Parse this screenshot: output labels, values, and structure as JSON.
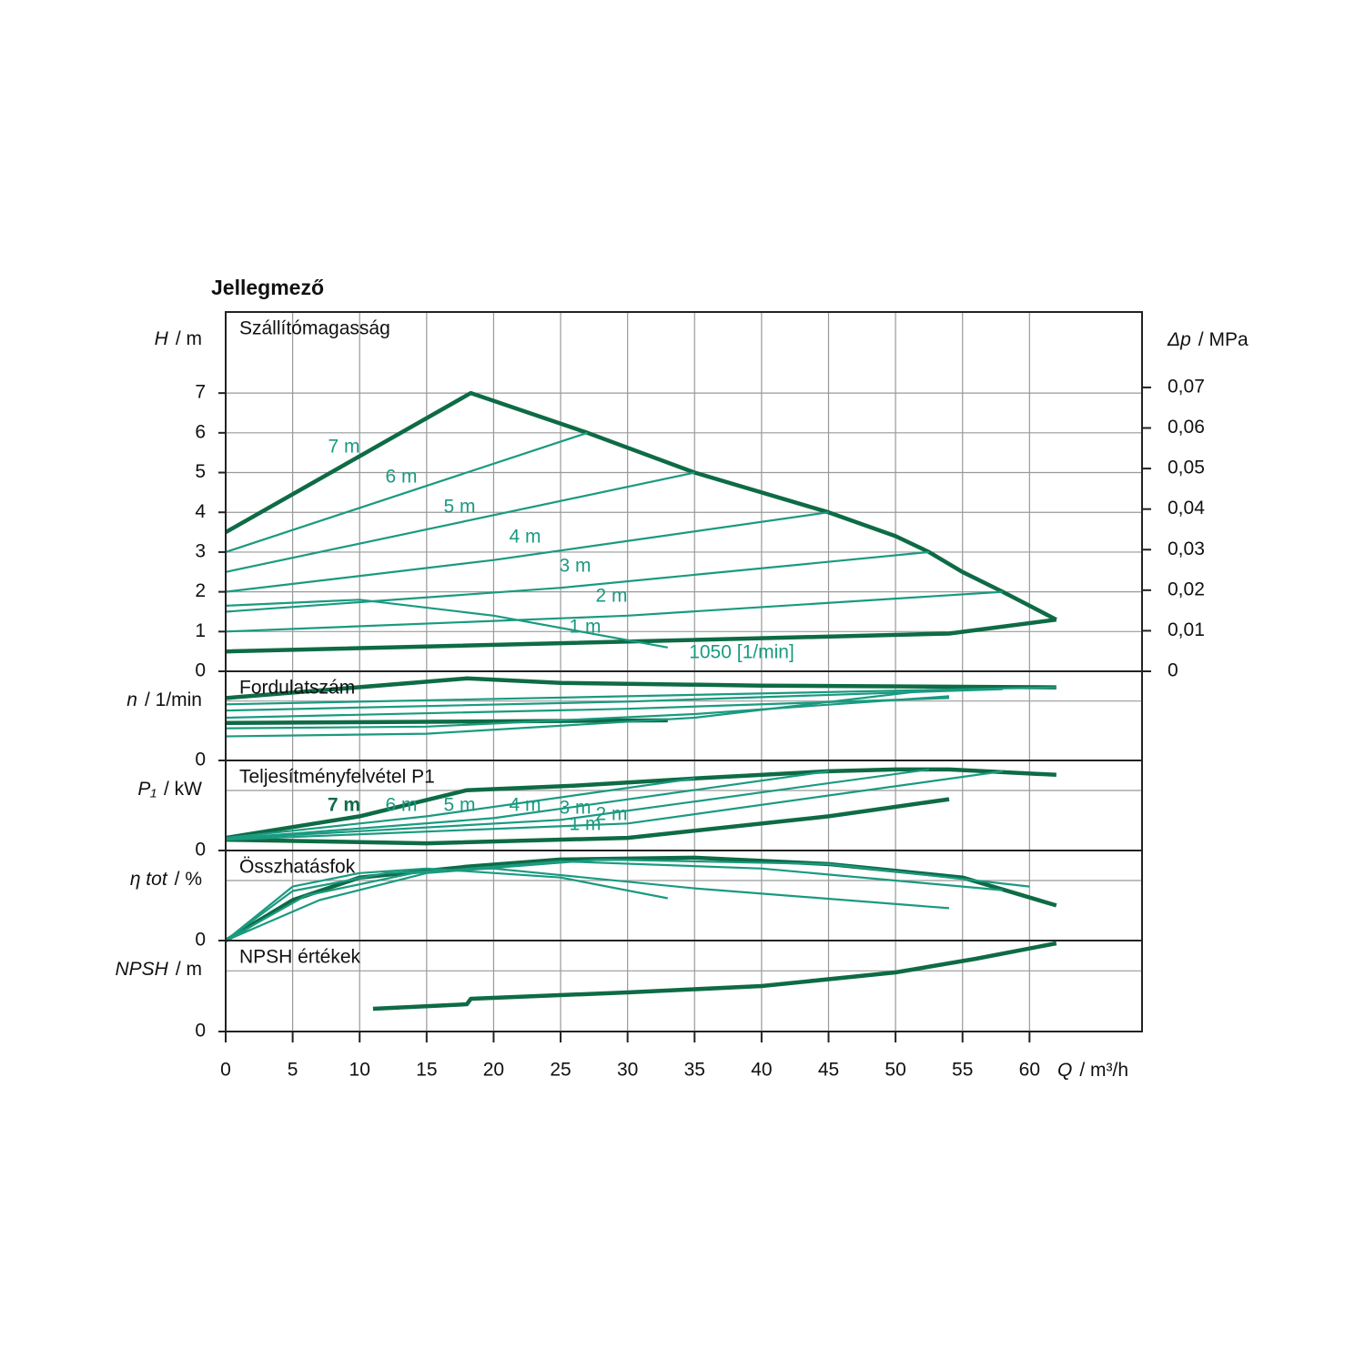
{
  "title": "Jellegmező",
  "chart_data": [
    {
      "type": "line",
      "title": "Szállítómagasság",
      "ylabel_symbol": "H",
      "ylabel_unit": "/ m",
      "ylim": [
        0,
        9.04
      ],
      "yticks": [
        0,
        1,
        2,
        3,
        4,
        5,
        6,
        7
      ],
      "grid": true,
      "y2label_symbol": "Δp",
      "y2label_unit": "/ MPa",
      "y2lim": [
        0,
        0.0886
      ],
      "y2ticks": [
        0,
        {
          "value": 0.01,
          "label": "0,01"
        },
        {
          "value": 0.02,
          "label": "0,02"
        },
        {
          "value": 0.03,
          "label": "0,03"
        },
        {
          "value": 0.04,
          "label": "0,04"
        },
        {
          "value": 0.05,
          "label": "0,05"
        },
        {
          "value": 0.06,
          "label": "0,06"
        },
        {
          "value": 0.07,
          "label": "0,07"
        }
      ],
      "labels": [
        "7 m",
        "6 m",
        "5 m",
        "4 m",
        "3 m",
        "2 m",
        "1 m",
        "1050 [1/min]"
      ],
      "series": [
        {
          "color": "#0e6b45",
          "thick": true,
          "x": [
            0,
            18.3,
            27,
            35,
            45,
            50,
            52.5,
            55,
            58,
            62
          ],
          "values": [
            3.5,
            7,
            6,
            5,
            4,
            3.4,
            3,
            2.5,
            2,
            1.3
          ]
        },
        {
          "color": "#0e6b45",
          "thick": true,
          "x": [
            0,
            54,
            62
          ],
          "values": [
            0.5,
            0.95,
            1.3
          ]
        },
        {
          "color": "#1a9a80",
          "thick": false,
          "x": [
            0,
            27
          ],
          "values": [
            3,
            6
          ]
        },
        {
          "color": "#1a9a80",
          "thick": false,
          "x": [
            0,
            35
          ],
          "values": [
            2.5,
            5
          ]
        },
        {
          "color": "#1a9a80",
          "thick": false,
          "x": [
            0,
            20,
            45
          ],
          "values": [
            2,
            2.8,
            4
          ]
        },
        {
          "color": "#1a9a80",
          "thick": false,
          "x": [
            0,
            25,
            52.5
          ],
          "values": [
            1.5,
            2.1,
            3
          ]
        },
        {
          "color": "#1a9a80",
          "thick": false,
          "x": [
            0,
            30,
            58
          ],
          "values": [
            1,
            1.4,
            2
          ]
        },
        {
          "color": "#1a9a80",
          "thick": false,
          "x": [
            0,
            10,
            20,
            33
          ],
          "values": [
            1.65,
            1.8,
            1.4,
            0.6
          ]
        }
      ]
    },
    {
      "type": "line",
      "title": "Fordulatszám",
      "ylabel_symbol": "n",
      "ylabel_unit": "/ 1/min",
      "ylim": [
        0,
        100
      ],
      "yticks": [
        0
      ],
      "grid": false,
      "series": [
        {
          "color": "#0e6b45",
          "thick": true,
          "x": [
            0,
            18,
            25,
            40,
            62
          ],
          "values": [
            70,
            92,
            87,
            84,
            82
          ]
        },
        {
          "color": "#1a9a80",
          "thick": false,
          "x": [
            0,
            30,
            62
          ],
          "values": [
            63,
            72,
            82
          ]
        },
        {
          "color": "#1a9a80",
          "thick": false,
          "x": [
            0,
            30,
            58
          ],
          "values": [
            56,
            66,
            80
          ]
        },
        {
          "color": "#1a9a80",
          "thick": false,
          "x": [
            0,
            30,
            54
          ],
          "values": [
            48,
            58,
            70
          ]
        },
        {
          "color": "#0e6b45",
          "thick": true,
          "x": [
            0,
            33
          ],
          "values": [
            42,
            45
          ]
        },
        {
          "color": "#1a9a80",
          "thick": false,
          "x": [
            0,
            15,
            35,
            54
          ],
          "values": [
            36,
            38,
            52,
            72
          ]
        },
        {
          "color": "#1a9a80",
          "thick": false,
          "x": [
            0,
            15,
            35,
            52
          ],
          "values": [
            27,
            30,
            48,
            78
          ]
        }
      ]
    },
    {
      "type": "line",
      "title": "Teljesítményfelvétel P1",
      "ylabel_symbol": "P₁",
      "ylabel_unit": "/ kW",
      "ylim": [
        0,
        100
      ],
      "yticks": [
        0
      ],
      "grid": false,
      "labels": [
        "7 m",
        "6 m",
        "5 m",
        "4 m",
        "3 m",
        "2 m",
        "1 m"
      ],
      "series": [
        {
          "color": "#0e6b45",
          "thick": true,
          "x": [
            0,
            10,
            18,
            26,
            35,
            45,
            50,
            54,
            62
          ],
          "values": [
            14,
            38,
            67,
            72,
            80,
            88,
            90,
            90,
            84
          ]
        },
        {
          "color": "#0e6b45",
          "thick": true,
          "x": [
            0,
            15,
            30,
            45,
            54
          ],
          "values": [
            12,
            8,
            14,
            38,
            57
          ]
        },
        {
          "color": "#1a9a80",
          "thick": false,
          "x": [
            0,
            15,
            35
          ],
          "values": [
            14,
            38,
            80
          ]
        },
        {
          "color": "#1a9a80",
          "thick": false,
          "x": [
            0,
            20,
            45
          ],
          "values": [
            13,
            36,
            88
          ]
        },
        {
          "color": "#1a9a80",
          "thick": false,
          "x": [
            0,
            25,
            52.5
          ],
          "values": [
            13,
            34,
            90
          ]
        },
        {
          "color": "#1a9a80",
          "thick": false,
          "x": [
            0,
            30,
            58
          ],
          "values": [
            12,
            30,
            88
          ]
        }
      ]
    },
    {
      "type": "line",
      "title": "Összhatásfok",
      "ylabel_symbol": "η tot",
      "ylabel_unit": "/ %",
      "ylim": [
        0,
        100
      ],
      "yticks": [
        0
      ],
      "grid": false,
      "series": [
        {
          "color": "#0e6b45",
          "thick": true,
          "x": [
            0,
            5,
            10,
            18,
            25,
            35,
            45,
            55,
            62
          ],
          "values": [
            0,
            45,
            70,
            82,
            90,
            92,
            85,
            70,
            39
          ]
        },
        {
          "color": "#1a9a80",
          "thick": false,
          "x": [
            0,
            5,
            10,
            15,
            25,
            33
          ],
          "values": [
            0,
            60,
            75,
            80,
            70,
            47
          ]
        },
        {
          "color": "#1a9a80",
          "thick": false,
          "x": [
            0,
            5,
            12,
            20,
            35,
            54
          ],
          "values": [
            0,
            55,
            75,
            80,
            58,
            36
          ]
        },
        {
          "color": "#1a9a80",
          "thick": false,
          "x": [
            0,
            6,
            14,
            25,
            40,
            58
          ],
          "values": [
            0,
            50,
            75,
            88,
            80,
            56
          ]
        },
        {
          "color": "#1a9a80",
          "thick": false,
          "x": [
            0,
            7,
            15,
            28,
            45,
            60
          ],
          "values": [
            0,
            45,
            75,
            90,
            85,
            60
          ]
        }
      ]
    },
    {
      "type": "line",
      "title": "NPSH értékek",
      "ylabel_symbol": "NPSH",
      "ylabel_unit": "/ m",
      "ylim": [
        0,
        100
      ],
      "yticks": [
        0
      ],
      "grid": false,
      "xlabel_symbol": "Q",
      "xlabel_unit": "/ m³/h",
      "xlim": [
        0,
        68.4
      ],
      "xticks": [
        0,
        5,
        10,
        15,
        20,
        25,
        30,
        35,
        40,
        45,
        50,
        55,
        60
      ],
      "series": [
        {
          "color": "#0e6b45",
          "thick": true,
          "x": [
            11,
            18,
            18.3,
            30,
            40,
            50,
            56,
            62
          ],
          "values": [
            25,
            30,
            36,
            43,
            50,
            65,
            80,
            97
          ]
        }
      ]
    }
  ]
}
